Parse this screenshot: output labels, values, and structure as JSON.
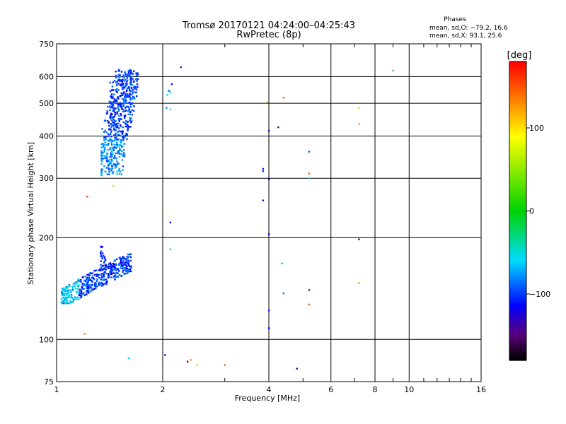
{
  "chart_data": {
    "type": "scatter",
    "title": "Tromsø 20170121 04:24:00–04:25:43",
    "subtitle": "RwPretec (8p)",
    "xlabel": "Frequency [MHz]",
    "ylabel": "Stationary phase Virtual Height [km]",
    "x_scale": "log",
    "y_scale": "log",
    "xlim": [
      1,
      16
    ],
    "ylim": [
      75,
      750
    ],
    "x_ticks": [
      1,
      2,
      4,
      6,
      8,
      10,
      16
    ],
    "x_tick_labels": [
      "1",
      "2",
      "4",
      "6",
      "8",
      "10",
      "16"
    ],
    "y_ticks": [
      75,
      100,
      200,
      300,
      400,
      500,
      600,
      750
    ],
    "y_tick_labels": [
      "75",
      "100",
      "200",
      "300",
      "400",
      "500",
      "600",
      "750"
    ],
    "grid": true,
    "phases_box": {
      "title": "Phases",
      "line1": "mean, sd,O: −79.2, 16.6",
      "line2": "mean, sd,X:  93.1, 25.6"
    },
    "colorbar": {
      "label": "[deg]",
      "range": [
        -180,
        180
      ],
      "ticks": [
        100,
        0,
        -100
      ],
      "tick_labels": [
        "100",
        "0",
        "−100"
      ]
    },
    "clusters": [
      {
        "x_range": [
          1.34,
          1.78
        ],
        "y_range": [
          305,
          630
        ],
        "phase_mean": -100,
        "phase_spread": 20
      },
      {
        "x_range": [
          1.03,
          1.63
        ],
        "y_range": [
          128,
          192
        ],
        "phase_mean": -90,
        "phase_spread": 22
      }
    ],
    "scattered_points": [
      {
        "x": 2.25,
        "y": 640,
        "phase": -110
      },
      {
        "x": 2.12,
        "y": 570,
        "phase": -110
      },
      {
        "x": 2.08,
        "y": 545,
        "phase": -95
      },
      {
        "x": 2.1,
        "y": 540,
        "phase": -60
      },
      {
        "x": 2.06,
        "y": 530,
        "phase": -55
      },
      {
        "x": 2.1,
        "y": 480,
        "phase": -60
      },
      {
        "x": 2.05,
        "y": 485,
        "phase": -80
      },
      {
        "x": 1.22,
        "y": 265,
        "phase": 160
      },
      {
        "x": 1.45,
        "y": 285,
        "phase": 110
      },
      {
        "x": 1.4,
        "y": 330,
        "phase": -75
      },
      {
        "x": 2.1,
        "y": 222,
        "phase": -110
      },
      {
        "x": 2.1,
        "y": 185,
        "phase": -55
      },
      {
        "x": 1.2,
        "y": 104,
        "phase": 135
      },
      {
        "x": 1.6,
        "y": 88,
        "phase": -65
      },
      {
        "x": 2.03,
        "y": 90,
        "phase": -110
      },
      {
        "x": 2.35,
        "y": 86,
        "phase": -150
      },
      {
        "x": 2.4,
        "y": 87,
        "phase": 130
      },
      {
        "x": 2.5,
        "y": 84,
        "phase": 105
      },
      {
        "x": 3.0,
        "y": 84,
        "phase": 140
      },
      {
        "x": 3.95,
        "y": 505,
        "phase": 95
      },
      {
        "x": 4.4,
        "y": 520,
        "phase": 150
      },
      {
        "x": 4.0,
        "y": 415,
        "phase": -130
      },
      {
        "x": 4.25,
        "y": 425,
        "phase": -140
      },
      {
        "x": 3.85,
        "y": 320,
        "phase": -110
      },
      {
        "x": 3.85,
        "y": 315,
        "phase": -105
      },
      {
        "x": 4.0,
        "y": 298,
        "phase": -115
      },
      {
        "x": 3.85,
        "y": 258,
        "phase": -115
      },
      {
        "x": 4.0,
        "y": 205,
        "phase": -115
      },
      {
        "x": 4.35,
        "y": 168,
        "phase": -70
      },
      {
        "x": 4.4,
        "y": 137,
        "phase": -85
      },
      {
        "x": 4.0,
        "y": 122,
        "phase": -105
      },
      {
        "x": 4.0,
        "y": 108,
        "phase": -110
      },
      {
        "x": 4.8,
        "y": 82,
        "phase": -130
      },
      {
        "x": 5.2,
        "y": 360,
        "phase": -95
      },
      {
        "x": 5.2,
        "y": 310,
        "phase": 145
      },
      {
        "x": 5.2,
        "y": 300,
        "phase": -65
      },
      {
        "x": 5.2,
        "y": 140,
        "phase": -150
      },
      {
        "x": 5.2,
        "y": 127,
        "phase": 150
      },
      {
        "x": 7.2,
        "y": 485,
        "phase": 110
      },
      {
        "x": 7.2,
        "y": 435,
        "phase": 125
      },
      {
        "x": 7.2,
        "y": 198,
        "phase": -140
      },
      {
        "x": 7.2,
        "y": 147,
        "phase": 125
      },
      {
        "x": 9.0,
        "y": 625,
        "phase": -65
      }
    ]
  }
}
